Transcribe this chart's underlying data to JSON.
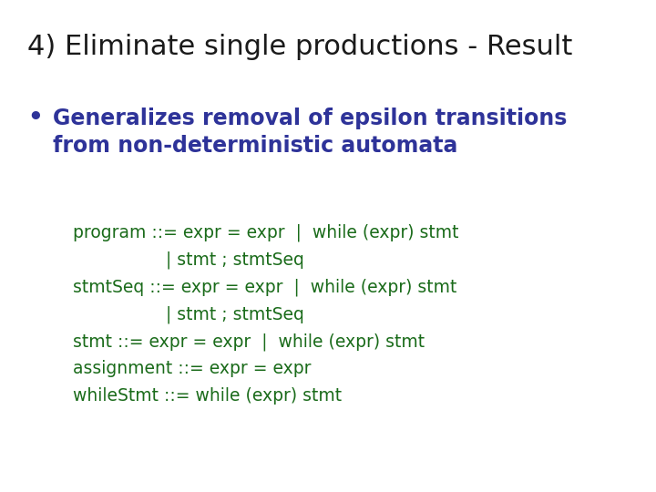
{
  "title": "4) Eliminate single productions - Result",
  "title_color": "#1a1a1a",
  "title_fontsize": 22,
  "bullet_color": "#2e3399",
  "bullet_text_line1": "Generalizes removal of epsilon transitions",
  "bullet_text_line2": "from non-deterministic automata",
  "bullet_fontsize": 17,
  "code_color": "#1a6b1a",
  "code_fontsize": 13.5,
  "code_lines": [
    "program ::= expr = expr  |  while (expr) stmt",
    "                | stmt ; stmtSeq",
    "stmtSeq ::= expr = expr  |  while (expr) stmt",
    "                | stmt ; stmtSeq",
    "stmt ::= expr = expr  |  while (expr) stmt",
    "assignment ::= expr = expr",
    "whileStmt ::= while (expr) stmt"
  ],
  "background_color": "#ffffff",
  "fig_width": 7.2,
  "fig_height": 5.4,
  "dpi": 100
}
